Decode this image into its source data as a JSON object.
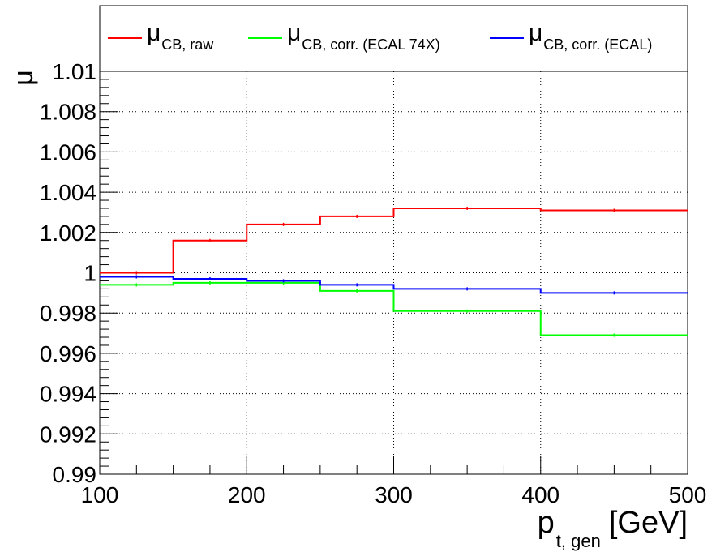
{
  "chart_data": {
    "type": "line",
    "ylabel": "μ",
    "xlabel": {
      "main": "p",
      "sub": "t, gen",
      "unit": "[GeV]"
    },
    "xlim": [
      100,
      500
    ],
    "ylim": [
      0.99,
      1.01
    ],
    "grid": true,
    "legend_position": "top",
    "x_ticks": [
      100,
      200,
      300,
      400,
      500
    ],
    "x_tick_labels": [
      "100",
      "200",
      "300",
      "400",
      "500"
    ],
    "y_ticks": [
      0.99,
      0.992,
      0.994,
      0.996,
      0.998,
      1.0,
      1.002,
      1.004,
      1.006,
      1.008,
      1.01
    ],
    "y_tick_labels": [
      "0.99",
      "0.992",
      "0.994",
      "0.996",
      "0.998",
      "1",
      "1.002",
      "1.004",
      "1.006",
      "1.008",
      "1.01"
    ],
    "bin_edges": [
      100,
      150,
      200,
      250,
      300,
      400,
      500
    ],
    "series": [
      {
        "name": "μ",
        "name_sub": "CB, raw",
        "color": "#ff0000",
        "values": [
          1.0,
          1.0016,
          1.0024,
          1.0028,
          1.0032,
          1.0031
        ]
      },
      {
        "name": "μ",
        "name_sub": "CB, corr. (ECAL 74X)",
        "color": "#00ff00",
        "values": [
          0.9994,
          0.9995,
          0.9995,
          0.9991,
          0.9981,
          0.9969
        ]
      },
      {
        "name": "μ",
        "name_sub": "CB, corr. (ECAL)",
        "color": "#0000ff",
        "values": [
          0.9998,
          0.9997,
          0.9996,
          0.9994,
          0.9992,
          0.999
        ]
      }
    ]
  }
}
